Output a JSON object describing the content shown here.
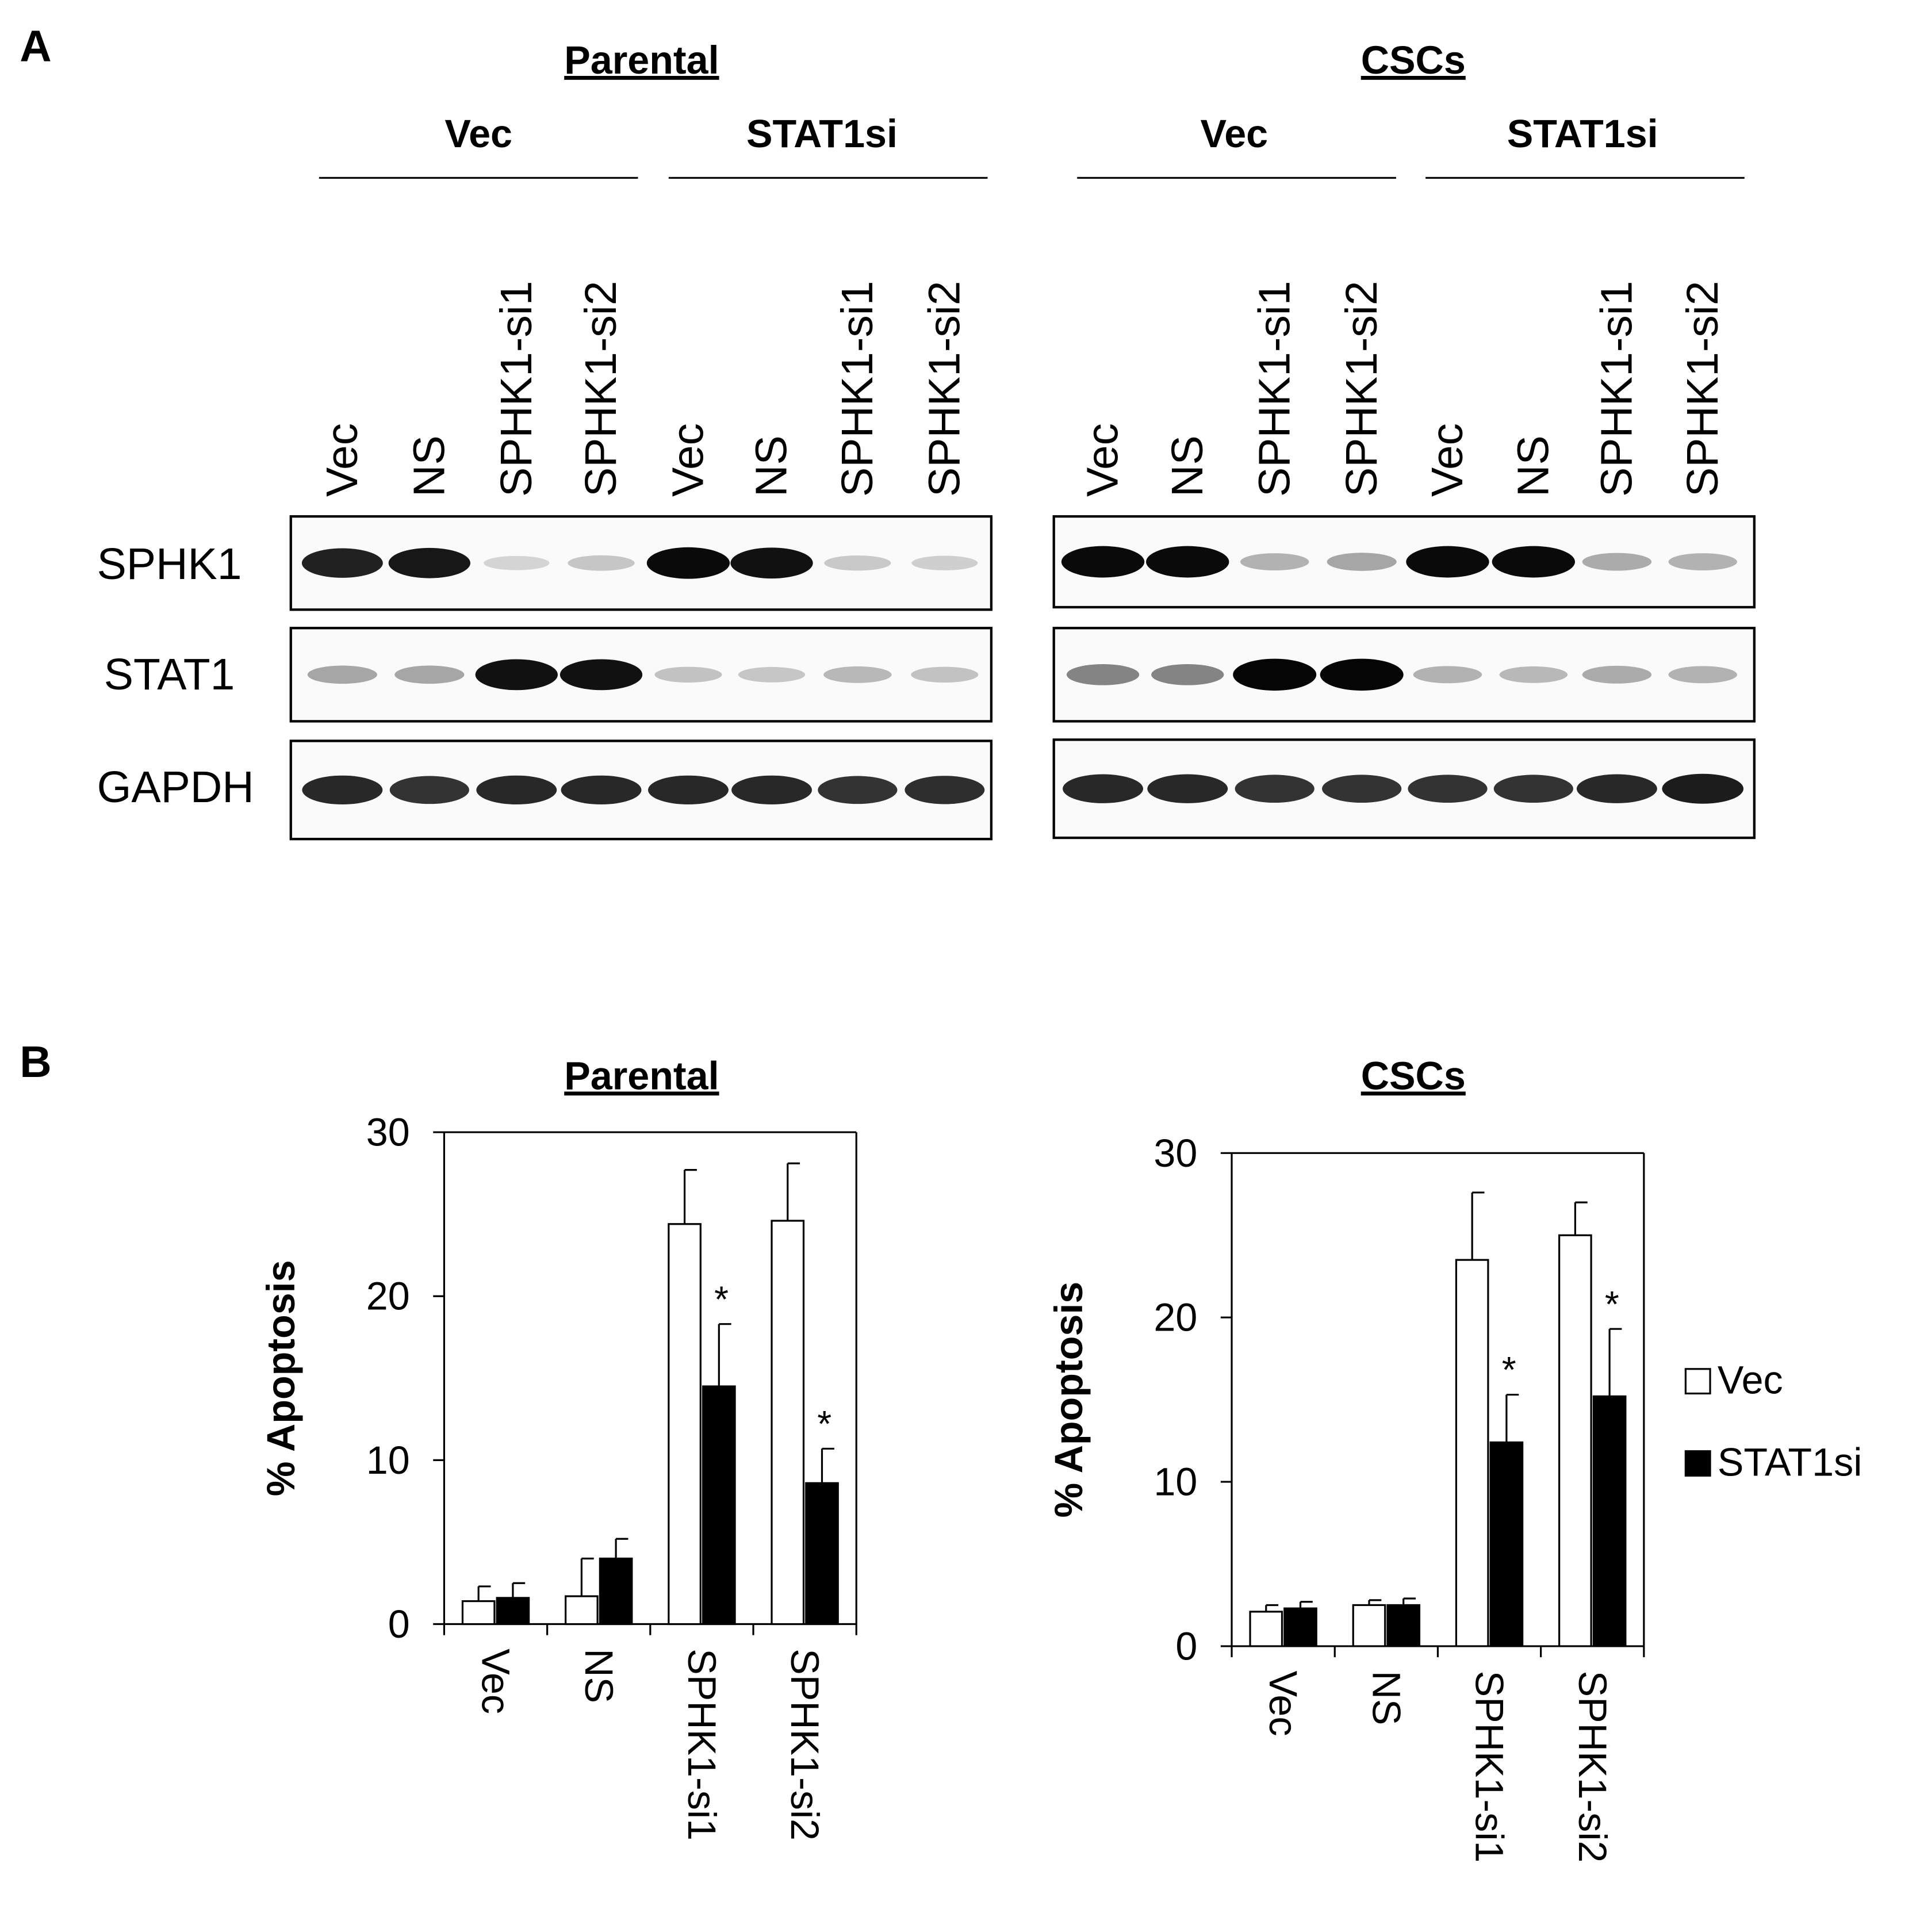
{
  "panel_a": {
    "letter": "A",
    "row_labels": [
      "SPHK1",
      "STAT1",
      "GAPDH"
    ],
    "blots": [
      {
        "title": "Parental",
        "groups": [
          "Vec",
          "STAT1si"
        ],
        "lanes": [
          "Vec",
          "NS",
          "SPHK1-si1",
          "SPHK1-si2",
          "Vec",
          "NS",
          "SPHK1-si1",
          "SPHK1-si2"
        ],
        "band_intensity": {
          "SPHK1": [
            0.88,
            0.92,
            0.1,
            0.16,
            0.98,
            0.95,
            0.15,
            0.12
          ],
          "STAT1": [
            0.3,
            0.3,
            0.95,
            0.95,
            0.18,
            0.16,
            0.22,
            0.18
          ],
          "GAPDH": [
            0.85,
            0.8,
            0.85,
            0.85,
            0.85,
            0.85,
            0.8,
            0.82
          ]
        }
      },
      {
        "title": "CSCs",
        "groups": [
          "Vec",
          "STAT1si"
        ],
        "lanes": [
          "Vec",
          "NS",
          "SPHK1-si1",
          "SPHK1-si2",
          "Vec",
          "NS",
          "SPHK1-si1",
          "SPHK1-si2"
        ],
        "band_intensity": {
          "SPHK1": [
            0.98,
            0.98,
            0.25,
            0.3,
            0.98,
            0.98,
            0.28,
            0.25
          ],
          "STAT1": [
            0.45,
            0.45,
            1.0,
            1.0,
            0.25,
            0.22,
            0.28,
            0.25
          ],
          "GAPDH": [
            0.85,
            0.85,
            0.8,
            0.8,
            0.8,
            0.8,
            0.85,
            0.9
          ]
        }
      }
    ]
  },
  "panel_b": {
    "letter": "B",
    "legend": [
      {
        "label": "Vec",
        "color": "#ffffff"
      },
      {
        "label": "STAT1si",
        "color": "#000000"
      }
    ]
  },
  "chart_data": [
    {
      "type": "bar",
      "title": "Parental",
      "ylabel": "% Apoptosis",
      "ylim": [
        0,
        30
      ],
      "yticks": [
        "0",
        "10",
        "20",
        "30"
      ],
      "categories": [
        "Vec",
        "NS",
        "SPHK1-si1",
        "SPHK1-si2"
      ],
      "series": [
        {
          "name": "Vec",
          "color": "#ffffff",
          "values": [
            1.4,
            1.7,
            24.4,
            24.6
          ],
          "errors": [
            0.9,
            2.3,
            3.3,
            3.5
          ]
        },
        {
          "name": "STAT1si",
          "color": "#000000",
          "values": [
            1.6,
            4.0,
            14.5,
            8.6
          ],
          "errors": [
            0.9,
            1.2,
            3.8,
            2.1
          ]
        }
      ],
      "annotations": [
        {
          "category": "SPHK1-si1",
          "series": "STAT1si",
          "text": "*"
        },
        {
          "category": "SPHK1-si2",
          "series": "STAT1si",
          "text": "*"
        }
      ]
    },
    {
      "type": "bar",
      "title": "CSCs",
      "ylabel": "% Apoptosis",
      "ylim": [
        0,
        30
      ],
      "yticks": [
        "0",
        "10",
        "20",
        "30"
      ],
      "categories": [
        "Vec",
        "NS",
        "SPHK1-si1",
        "SPHK1-si2"
      ],
      "series": [
        {
          "name": "Vec",
          "color": "#ffffff",
          "values": [
            2.1,
            2.5,
            23.5,
            25.0
          ],
          "errors": [
            0.4,
            0.3,
            4.1,
            2.0
          ]
        },
        {
          "name": "STAT1si",
          "color": "#000000",
          "values": [
            2.3,
            2.5,
            12.4,
            15.2
          ],
          "errors": [
            0.4,
            0.4,
            2.9,
            4.1
          ]
        }
      ],
      "annotations": [
        {
          "category": "SPHK1-si1",
          "series": "STAT1si",
          "text": "*"
        },
        {
          "category": "SPHK1-si2",
          "series": "STAT1si",
          "text": "*"
        }
      ]
    }
  ]
}
